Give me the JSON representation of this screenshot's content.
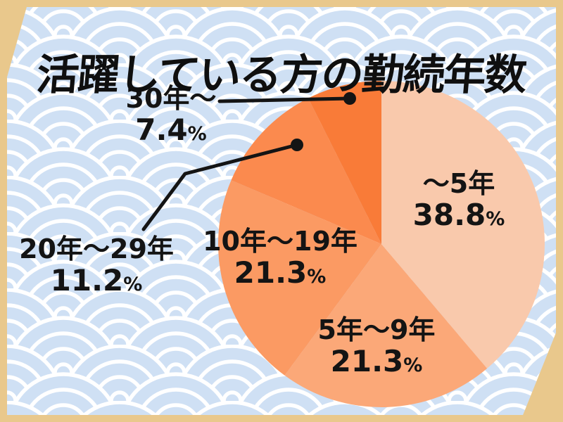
{
  "page": {
    "title": "活躍している方の勤続年数"
  },
  "chart_data": {
    "type": "pie",
    "title": "活躍している方の勤続年数",
    "unit": "%",
    "start_angle_deg": 0,
    "direction": "clockwise",
    "legend": "none",
    "labels_placement": "inside for large slices; outside with black leader lines and dot markers for 20年〜29年 and 30年〜",
    "slices": [
      {
        "label": "～5年",
        "value": 38.8,
        "value_text": "38.8",
        "color": "#f9c9ac"
      },
      {
        "label": "5年～9年",
        "value": 21.3,
        "value_text": "21.3",
        "color": "#fba878"
      },
      {
        "label": "10年～19年",
        "value": 21.3,
        "value_text": "21.3",
        "color": "#fb9a63"
      },
      {
        "label": "20年～29年",
        "value": 11.2,
        "value_text": "11.2",
        "color": "#fb8a4e"
      },
      {
        "label": "30年～",
        "value": 7.4,
        "value_text": "7.4",
        "color": "#f97b38"
      }
    ]
  },
  "theme": {
    "panel_background": "#cfe0f4",
    "wave_color": "#ffffff",
    "frame_color": "#e9c88c",
    "text_color": "#141414",
    "leader_line_color": "#141414"
  }
}
